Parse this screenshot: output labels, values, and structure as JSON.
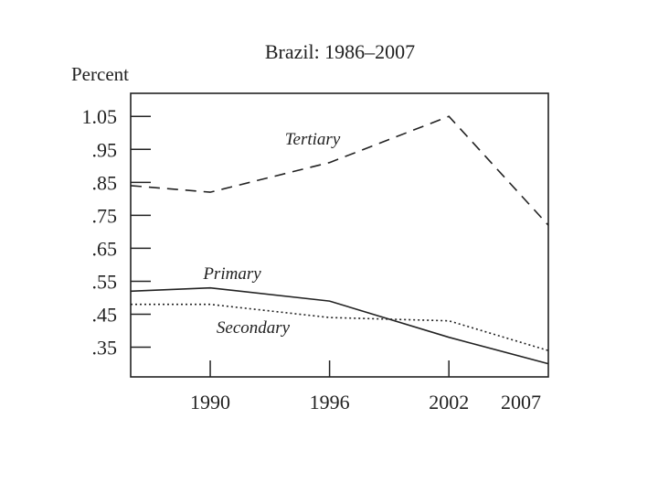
{
  "chart_data": {
    "type": "line",
    "title": "Brazil: 1986–2007",
    "ylabel": "Percent",
    "xlabel": "",
    "x": [
      1986,
      1990,
      1996,
      2002,
      2007
    ],
    "x_tick_labels": [
      "1990",
      "1996",
      "2002",
      "2007"
    ],
    "x_ticks": [
      1990,
      1996,
      2002,
      2007
    ],
    "xlim": [
      1986,
      2007
    ],
    "y_tick_labels": [
      "1.05",
      ".95",
      ".85",
      ".75",
      ".65",
      ".55",
      ".45",
      ".35"
    ],
    "y_ticks": [
      1.05,
      0.95,
      0.85,
      0.75,
      0.65,
      0.55,
      0.45,
      0.35
    ],
    "ylim": [
      0.26,
      1.12
    ],
    "series": [
      {
        "name": "Tertiary",
        "style": "dashed",
        "values": [
          0.84,
          0.82,
          0.91,
          1.05,
          0.72
        ]
      },
      {
        "name": "Primary",
        "style": "solid",
        "values": [
          0.52,
          0.53,
          0.49,
          0.38,
          0.3
        ]
      },
      {
        "name": "Secondary",
        "style": "dotted",
        "values": [
          0.48,
          0.48,
          0.44,
          0.43,
          0.34
        ]
      }
    ]
  }
}
